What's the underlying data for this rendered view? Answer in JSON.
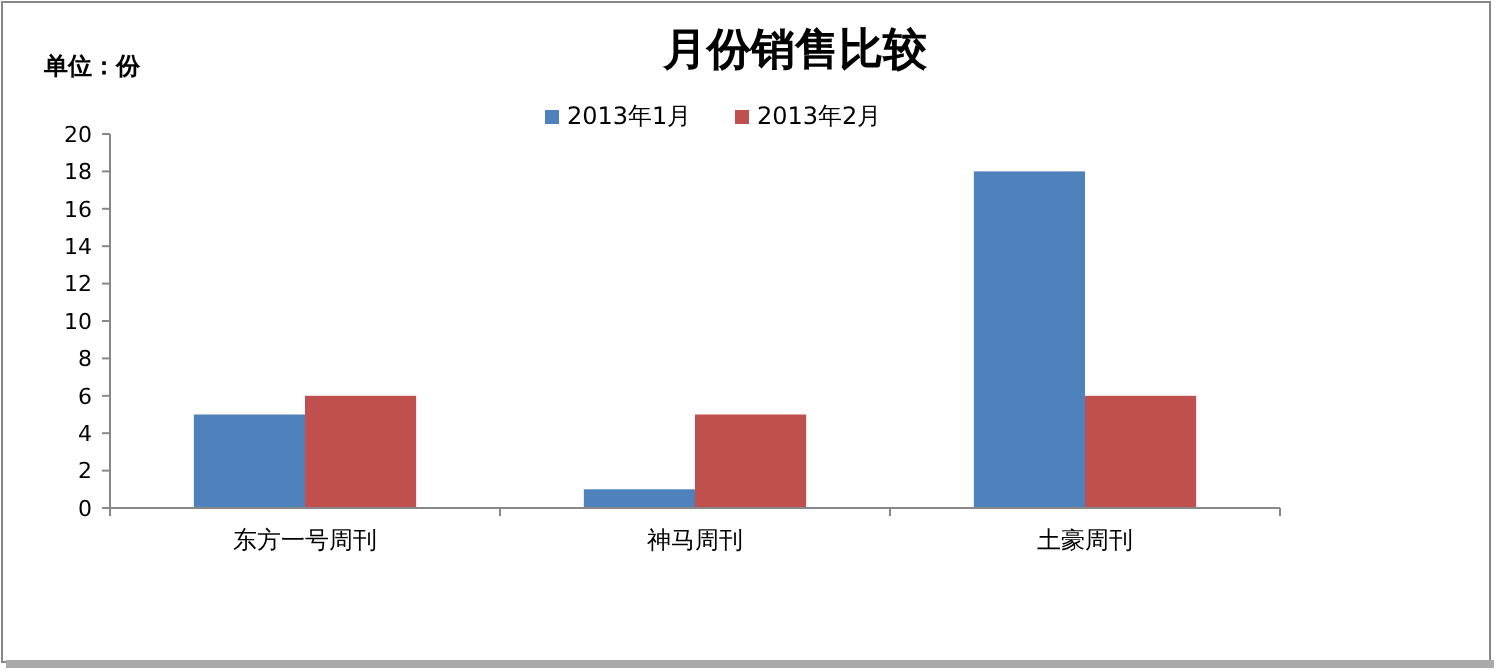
{
  "chart_data": {
    "type": "bar",
    "title": "月份销售比较",
    "ylabel": "单位：份",
    "categories": [
      "东方一号周刊",
      "神马周刊",
      "土豪周刊"
    ],
    "series": [
      {
        "name": "2013年1月",
        "color": "#4f81bd",
        "values": [
          5,
          1,
          18
        ]
      },
      {
        "name": "2013年2月",
        "color": "#c0504d",
        "values": [
          6,
          5,
          6
        ]
      }
    ],
    "ylim": [
      0,
      20
    ],
    "yticks": [
      0,
      2,
      4,
      6,
      8,
      10,
      12,
      14,
      16,
      18,
      20
    ],
    "grid": false,
    "legend": "top"
  }
}
